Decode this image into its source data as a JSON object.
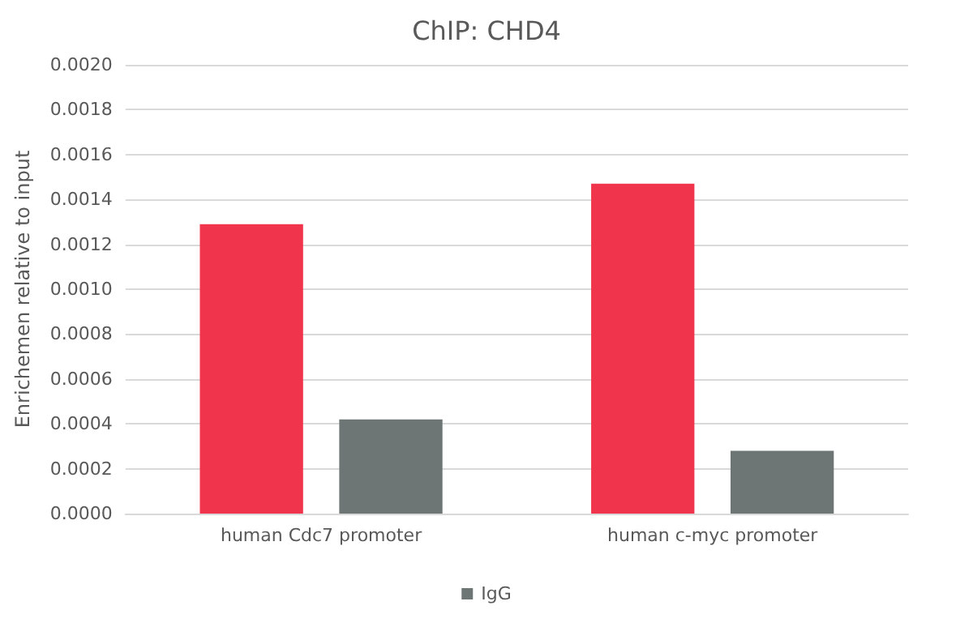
{
  "chart_data": {
    "type": "bar",
    "title": "ChIP: CHD4",
    "ylabel": "Enrichemen relative to input",
    "categories": [
      "human Cdc7 promoter",
      "human c-myc promoter"
    ],
    "series": [
      {
        "color": "#f0344c",
        "values": [
          0.00129,
          0.00147
        ]
      },
      {
        "name": "IgG",
        "color": "#6e7575",
        "values": [
          0.00042,
          0.00028
        ]
      }
    ],
    "ylim": [
      0,
      0.002
    ],
    "yticks": [
      {
        "value": 0,
        "label": "0.0000"
      },
      {
        "value": 0.0002,
        "label": "0.0002"
      },
      {
        "value": 0.0004,
        "label": "0.0004"
      },
      {
        "value": 0.0006,
        "label": "0.0006"
      },
      {
        "value": 0.0008,
        "label": "0.0008"
      },
      {
        "value": 0.001,
        "label": "0.0010"
      },
      {
        "value": 0.0012,
        "label": "0.0012"
      },
      {
        "value": 0.0014,
        "label": "0.0014"
      },
      {
        "value": 0.0016,
        "label": "0.0016"
      },
      {
        "value": 0.0018,
        "label": "0.0018"
      },
      {
        "value": 0.002,
        "label": "0.0020"
      }
    ],
    "grid": "y",
    "legend": "bottom"
  }
}
